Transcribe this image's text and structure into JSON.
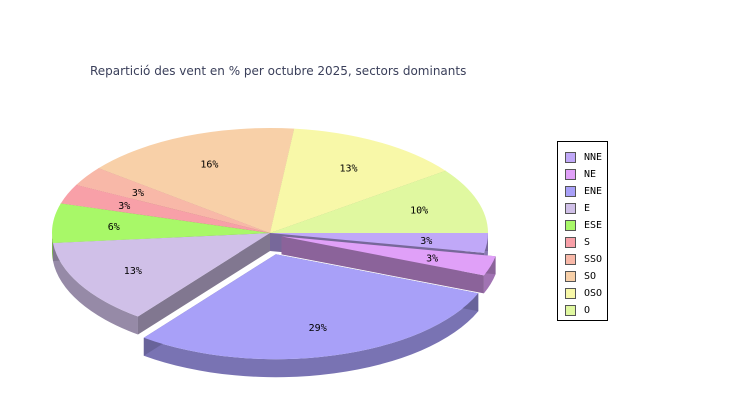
{
  "chart_data": {
    "type": "pie",
    "title": "Repartició des vent en % per octubre 2025, sectors dominants",
    "categories": [
      "NNE",
      "NE",
      "ENE",
      "E",
      "ESE",
      "S",
      "SSO",
      "SO",
      "OSO",
      "O"
    ],
    "values": [
      3,
      3,
      29,
      13,
      6,
      3,
      3,
      16,
      13,
      10
    ],
    "labels": [
      "3%",
      "3%",
      "29%",
      "13%",
      "6%",
      "3%",
      "3%",
      "16%",
      "13%",
      "10%"
    ],
    "colors": [
      "#c0a8f8",
      "#e0a0f8",
      "#a8a0f8",
      "#d0c0e8",
      "#a8f868",
      "#f8a0a8",
      "#f8b8a8",
      "#f8d0a8",
      "#f8f8a8",
      "#e0f8a0"
    ],
    "exploded": [
      "NE",
      "ENE"
    ],
    "legend": "right"
  }
}
